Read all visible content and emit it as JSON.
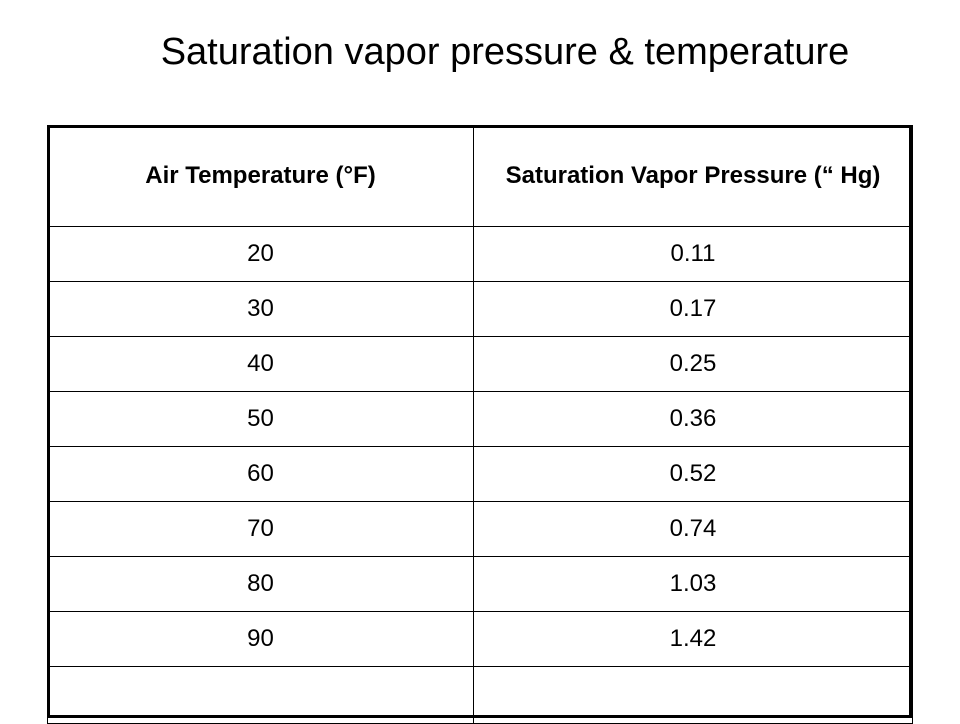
{
  "title": "Saturation vapor pressure & temperature",
  "table": {
    "headers": [
      "Air Temperature (°F)",
      "Saturation Vapor Pressure (“ Hg)"
    ],
    "rows": [
      [
        "20",
        "0.11"
      ],
      [
        "30",
        "0.17"
      ],
      [
        "40",
        "0.25"
      ],
      [
        "50",
        "0.36"
      ],
      [
        "60",
        "0.52"
      ],
      [
        "70",
        "0.74"
      ],
      [
        "80",
        "1.03"
      ],
      [
        "90",
        "1.42"
      ],
      [
        "",
        ""
      ]
    ]
  },
  "chart_data": {
    "type": "table",
    "title": "Saturation vapor pressure & temperature",
    "columns": [
      "Air Temperature (°F)",
      "Saturation Vapor Pressure (“ Hg)"
    ],
    "x": [
      20,
      30,
      40,
      50,
      60,
      70,
      80,
      90
    ],
    "values": [
      0.11,
      0.17,
      0.25,
      0.36,
      0.52,
      0.74,
      1.03,
      1.42
    ]
  }
}
